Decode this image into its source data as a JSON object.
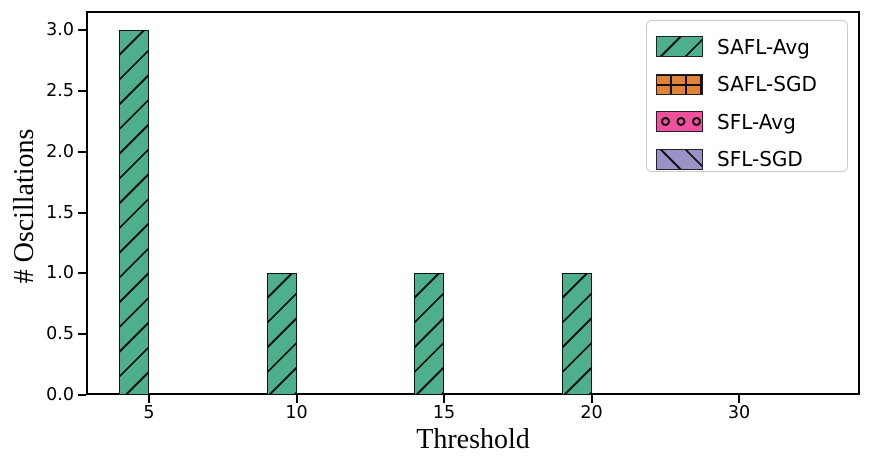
{
  "figure": {
    "background": "#ffffff",
    "frame_color": "#000000",
    "legend_border_color": "#cccccc"
  },
  "chart_data": {
    "type": "bar",
    "title": "",
    "xlabel": "Threshold",
    "ylabel": "# Oscillations",
    "categories": [
      "5",
      "10",
      "15",
      "20",
      "30"
    ],
    "series": [
      {
        "name": "SAFL-Avg",
        "color": "#4daf8c",
        "hatch": "slash",
        "values": [
          3,
          1,
          1,
          1,
          0
        ]
      },
      {
        "name": "SAFL-SGD",
        "color": "#e08238",
        "hatch": "plus",
        "values": [
          0,
          0,
          0,
          0,
          0
        ]
      },
      {
        "name": "SFL-Avg",
        "color": "#ef519d",
        "hatch": "circle",
        "values": [
          0,
          0,
          0,
          0,
          0
        ]
      },
      {
        "name": "SFL-SGD",
        "color": "#9a92c7",
        "hatch": "backslash",
        "values": [
          0,
          0,
          0,
          0,
          0
        ]
      }
    ],
    "ylim": [
      0,
      3.0
    ],
    "yticks": [
      "0.0",
      "0.5",
      "1.0",
      "1.5",
      "2.0",
      "2.5",
      "3.0"
    ],
    "grid": false,
    "legend_position": "upper right",
    "hatch_edge_color": "#111111"
  }
}
